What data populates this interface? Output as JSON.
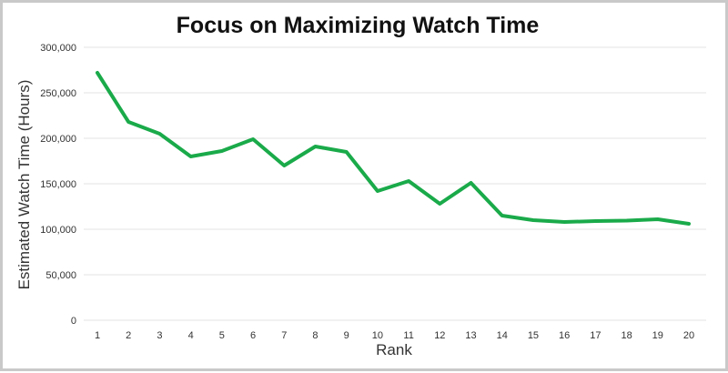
{
  "chart_data": {
    "type": "line",
    "title": "Focus on Maximizing Watch Time",
    "xlabel": "Rank",
    "ylabel": "Estimated Watch Time (Hours)",
    "ylim": [
      0,
      300000
    ],
    "yticks": [
      0,
      50000,
      100000,
      150000,
      200000,
      250000,
      300000
    ],
    "ytick_labels": [
      "0",
      "50,000",
      "100,000",
      "150,000",
      "200,000",
      "250,000",
      "300,000"
    ],
    "x": [
      1,
      2,
      3,
      4,
      5,
      6,
      7,
      8,
      9,
      10,
      11,
      12,
      13,
      14,
      15,
      16,
      17,
      18,
      19,
      20
    ],
    "x_labels": [
      "1",
      "2",
      "3",
      "4",
      "5",
      "6",
      "7",
      "8",
      "9",
      "10",
      "11",
      "12",
      "13",
      "14",
      "15",
      "16",
      "17",
      "18",
      "19",
      "20"
    ],
    "grid": true,
    "series": [
      {
        "color": "#1aaa4a",
        "values": [
          272000,
          218000,
          205000,
          180000,
          186000,
          199000,
          170000,
          191000,
          185000,
          142000,
          153000,
          128000,
          151000,
          115000,
          110000,
          108000,
          109000,
          109500,
          111000,
          106000
        ]
      }
    ]
  }
}
